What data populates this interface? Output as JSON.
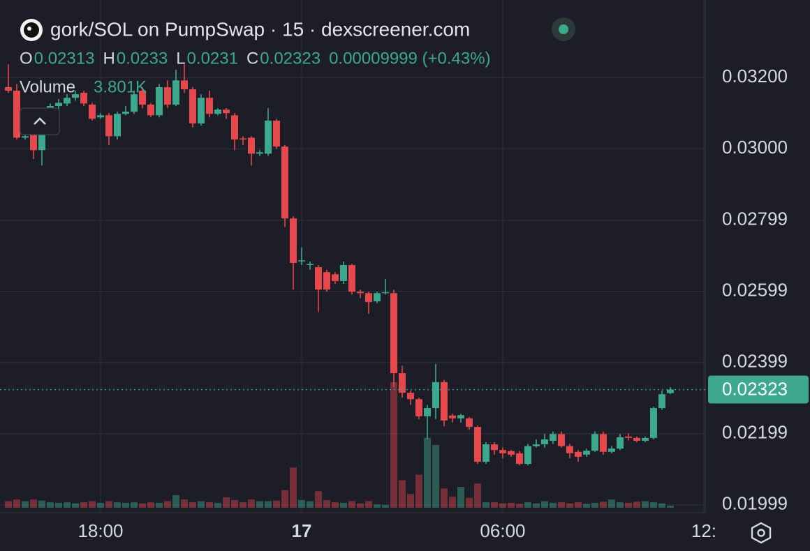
{
  "chart_data": {
    "type": "candlestick",
    "title": "gork/SOL on PumpSwap · 15 · dexscreener.com",
    "ohlc_letters": [
      "O",
      "H",
      "L",
      "C"
    ],
    "change": "0.00009999 (+0.43%)",
    "up_color": "#3ea88e",
    "down_color": "#e5484d",
    "open": [
      0.03173,
      0.03163,
      0.03031,
      0.03039,
      0.02996,
      0.03055,
      0.0312,
      0.03127,
      0.03143,
      0.03157,
      0.03124,
      0.03088,
      0.03094,
      0.03035,
      0.03098,
      0.03104,
      0.03163,
      0.03124,
      0.03094,
      0.03173,
      0.03124,
      0.03192,
      0.03167,
      0.03071,
      0.03143,
      0.03098,
      0.0311,
      0.03094,
      0.03029,
      0.03031,
      0.02986,
      0.02986,
      0.03079,
      0.03006,
      0.02804,
      0.02683,
      0.02673,
      0.02667,
      0.02653,
      0.02647,
      0.02628,
      0.02673,
      0.02598,
      0.02594,
      0.02571,
      0.02594,
      0.02594,
      0.02369,
      0.02314,
      0.02296,
      0.02248,
      0.02271,
      0.02344,
      0.0225,
      0.02242,
      0.02242,
      0.02218,
      0.0212,
      0.02169,
      0.02153,
      0.0215,
      0.02144,
      0.02114,
      0.02164,
      0.02169,
      0.02179,
      0.02198,
      0.02164,
      0.02148,
      0.0214,
      0.02151,
      0.02198,
      0.02148,
      0.02157,
      0.02191,
      0.02187,
      0.02179,
      0.02187,
      0.02271,
      0.02313
    ],
    "high": [
      0.03237,
      0.03182,
      0.03045,
      0.03045,
      0.0306,
      0.03127,
      0.0314,
      0.03153,
      0.03163,
      0.03163,
      0.03129,
      0.031,
      0.031,
      0.03104,
      0.0312,
      0.03163,
      0.03173,
      0.03129,
      0.03182,
      0.03192,
      0.03222,
      0.03237,
      0.03173,
      0.03153,
      0.03163,
      0.03114,
      0.03114,
      0.031,
      0.03035,
      0.03035,
      0.02996,
      0.03114,
      0.03084,
      0.0301,
      0.0281,
      0.02722,
      0.02683,
      0.02673,
      0.0266,
      0.02653,
      0.02683,
      0.02676,
      0.02604,
      0.02598,
      0.02598,
      0.02634,
      0.02604,
      0.0239,
      0.0232,
      0.023,
      0.0228,
      0.02395,
      0.0235,
      0.02255,
      0.02255,
      0.02246,
      0.02222,
      0.02175,
      0.02175,
      0.0216,
      0.02153,
      0.0215,
      0.0217,
      0.02183,
      0.02198,
      0.02205,
      0.02205,
      0.0217,
      0.02153,
      0.02157,
      0.02205,
      0.02205,
      0.02164,
      0.02198,
      0.022,
      0.02191,
      0.02191,
      0.02275,
      0.0232,
      0.0233
    ],
    "low": [
      0.03157,
      0.03026,
      0.03026,
      0.02971,
      0.02953,
      0.0305,
      0.0311,
      0.0312,
      0.03135,
      0.0312,
      0.03079,
      0.03084,
      0.0301,
      0.03026,
      0.03094,
      0.03098,
      0.03114,
      0.03088,
      0.03088,
      0.03114,
      0.0312,
      0.03157,
      0.0306,
      0.03065,
      0.03088,
      0.03094,
      0.03084,
      0.02996,
      0.0301,
      0.02953,
      0.0298,
      0.0298,
      0.03,
      0.0278,
      0.02604,
      0.02673,
      0.0266,
      0.02541,
      0.02598,
      0.0262,
      0.0262,
      0.0259,
      0.0258,
      0.02536,
      0.02566,
      0.0259,
      0.0233,
      0.023,
      0.0228,
      0.0224,
      0.02183,
      0.0224,
      0.0222,
      0.0223,
      0.0223,
      0.0221,
      0.02114,
      0.02114,
      0.0214,
      0.0213,
      0.02134,
      0.0211,
      0.0211,
      0.0216,
      0.0216,
      0.0217,
      0.0216,
      0.0213,
      0.0212,
      0.02134,
      0.02148,
      0.0214,
      0.02144,
      0.02153,
      0.0218,
      0.02175,
      0.02175,
      0.02183,
      0.02266,
      0.0231
    ],
    "close": [
      0.03163,
      0.03031,
      0.03035,
      0.02996,
      0.03055,
      0.0312,
      0.03129,
      0.03143,
      0.03153,
      0.03127,
      0.03084,
      0.03094,
      0.03035,
      0.03098,
      0.03104,
      0.03153,
      0.03124,
      0.03094,
      0.03173,
      0.03124,
      0.03192,
      0.03167,
      0.03071,
      0.03143,
      0.03098,
      0.0311,
      0.031,
      0.03026,
      0.03026,
      0.02986,
      0.0299,
      0.03079,
      0.03006,
      0.02804,
      0.02679,
      0.02686,
      0.02676,
      0.02604,
      0.02604,
      0.02628,
      0.02673,
      0.02598,
      0.02594,
      0.02569,
      0.02594,
      0.02597,
      0.02369,
      0.02314,
      0.02296,
      0.02248,
      0.02271,
      0.02344,
      0.02236,
      0.02242,
      0.02251,
      0.02218,
      0.0212,
      0.02169,
      0.02153,
      0.02144,
      0.0214,
      0.02114,
      0.02164,
      0.02169,
      0.02183,
      0.02198,
      0.02164,
      0.02144,
      0.02134,
      0.02151,
      0.02198,
      0.02148,
      0.02157,
      0.02189,
      0.02187,
      0.02179,
      0.02187,
      0.02271,
      0.0231,
      0.02323
    ],
    "volume": {
      "name": "Volume",
      "values": [
        12000,
        15000,
        12000,
        15000,
        13000,
        10000,
        9000,
        10000,
        8000,
        10000,
        12000,
        9000,
        12000,
        10000,
        9000,
        10000,
        8000,
        10000,
        9000,
        12000,
        23000,
        15000,
        10000,
        12000,
        10000,
        9000,
        19000,
        14000,
        10000,
        15000,
        12000,
        12000,
        13000,
        32000,
        73000,
        14000,
        12000,
        30000,
        14000,
        10000,
        9000,
        12000,
        8000,
        12000,
        6000,
        5000,
        228000,
        50000,
        25000,
        60000,
        127000,
        114000,
        35000,
        20000,
        38000,
        18000,
        44000,
        10000,
        10000,
        8000,
        9000,
        7000,
        10000,
        8000,
        12000,
        9000,
        10000,
        8000,
        10000,
        7000,
        9000,
        11000,
        15000,
        10000,
        9000,
        11000,
        12000,
        10000,
        8000,
        3801
      ],
      "value_labels": [
        null,
        null,
        null,
        null,
        null,
        null,
        null,
        null,
        null,
        null,
        null,
        null,
        null,
        null,
        null,
        null,
        null,
        null,
        null,
        null,
        null,
        null,
        null,
        null,
        null,
        null,
        null,
        null,
        null,
        null,
        null,
        null,
        null,
        null,
        null,
        null,
        null,
        null,
        null,
        null,
        null,
        null,
        null,
        null,
        null,
        null,
        null,
        null,
        null,
        null,
        null,
        null,
        null,
        null,
        null,
        null,
        null,
        null,
        null,
        null,
        null,
        null,
        null,
        null,
        null,
        null,
        null,
        null,
        null,
        null,
        null,
        null,
        null,
        null,
        null,
        null,
        null,
        null,
        null,
        "3.801K"
      ]
    },
    "xlim": [
      -1,
      83.17
    ],
    "xticks": [
      {
        "value": 11,
        "label": "18:00"
      },
      {
        "value": 35,
        "label": "17"
      },
      {
        "value": 59,
        "label": "06:00"
      },
      {
        "value": 83,
        "label": "12:"
      }
    ],
    "ylim": [
      0.01977,
      0.03418
    ],
    "yticks": [
      {
        "value": 0.032,
        "label": "0.03200"
      },
      {
        "value": 0.03,
        "label": "0.03000"
      },
      0.02799,
      0.02599,
      0.02399,
      0.02199,
      0.01999
    ],
    "grid": true
  }
}
